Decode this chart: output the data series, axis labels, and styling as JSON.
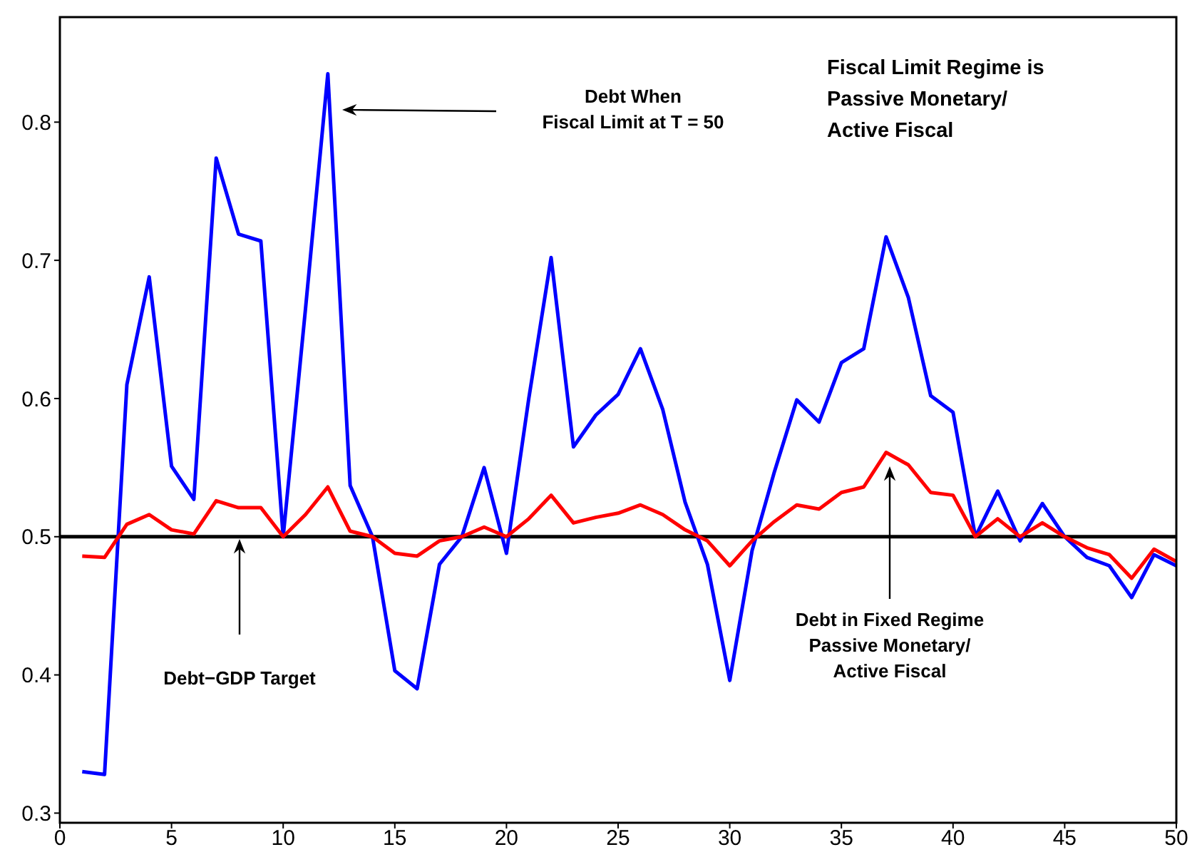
{
  "chart_data": {
    "type": "line",
    "x": [
      1,
      2,
      3,
      4,
      5,
      6,
      7,
      8,
      9,
      10,
      11,
      12,
      13,
      14,
      15,
      16,
      17,
      18,
      19,
      20,
      21,
      22,
      23,
      24,
      25,
      26,
      27,
      28,
      29,
      30,
      31,
      32,
      33,
      34,
      35,
      36,
      37,
      38,
      39,
      40,
      41,
      42,
      43,
      44,
      45,
      46,
      47,
      48,
      49,
      50
    ],
    "series": [
      {
        "color": "#0000ff",
        "values": [
          0.33,
          0.328,
          0.61,
          0.688,
          0.551,
          0.527,
          0.774,
          0.719,
          0.714,
          0.5,
          0.665,
          0.835,
          0.537,
          0.5,
          0.403,
          0.39,
          0.48,
          0.5,
          0.55,
          0.488,
          0.6,
          0.702,
          0.565,
          0.588,
          0.603,
          0.636,
          0.592,
          0.525,
          0.48,
          0.396,
          0.49,
          0.547,
          0.599,
          0.583,
          0.626,
          0.636,
          0.717,
          0.673,
          0.602,
          0.59,
          0.5,
          0.533,
          0.497,
          0.524,
          0.5,
          0.485,
          0.479,
          0.456,
          0.487,
          0.479
        ]
      },
      {
        "color": "#ff0000",
        "values": [
          0.486,
          0.485,
          0.509,
          0.516,
          0.505,
          0.502,
          0.526,
          0.521,
          0.521,
          0.5,
          0.516,
          0.536,
          0.504,
          0.5,
          0.488,
          0.486,
          0.497,
          0.5,
          0.507,
          0.5,
          0.513,
          0.53,
          0.51,
          0.514,
          0.517,
          0.523,
          0.516,
          0.505,
          0.497,
          0.479,
          0.497,
          0.511,
          0.523,
          0.52,
          0.532,
          0.536,
          0.561,
          0.552,
          0.532,
          0.53,
          0.5,
          0.513,
          0.5,
          0.51,
          0.5,
          0.492,
          0.487,
          0.47,
          0.491,
          0.482
        ]
      }
    ],
    "xlim": [
      0,
      50
    ],
    "xticks": [
      0,
      5,
      10,
      15,
      20,
      25,
      30,
      35,
      40,
      45,
      50
    ],
    "ylim": [
      0.293,
      0.876
    ],
    "yticks": [
      0.3,
      0.4,
      0.5,
      0.6,
      0.7,
      0.8
    ],
    "ref_lines": [
      {
        "axis": "y",
        "value": 0.5,
        "color": "#000000"
      }
    ],
    "annotations": [
      "Debt When\nFiscal Limit at T = 50",
      "Debt−GDP Target",
      "Debt in Fixed Regime\nPassive Monetary/\nActive Fiscal",
      "Fiscal Limit Regime is\nPassive Monetary/\nActive Fiscal"
    ],
    "grid": false,
    "legend": false,
    "marker": "none",
    "line_style": "solid"
  }
}
